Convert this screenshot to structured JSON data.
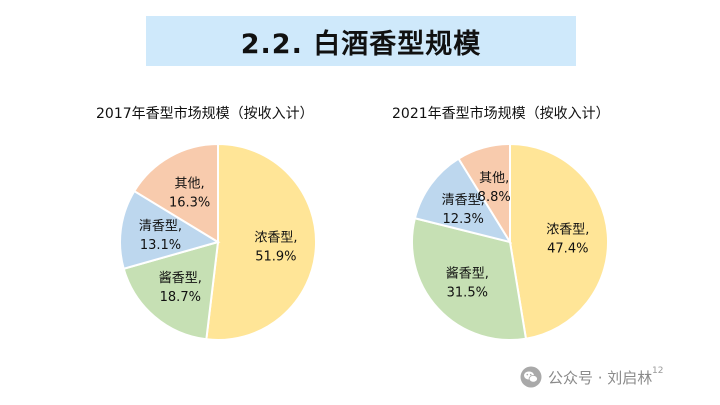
{
  "title": "2.2. 白酒香型规模",
  "chart_data": [
    {
      "type": "pie",
      "title": "2017年香型市场规模（按收入计）",
      "slices": [
        {
          "name": "浓香型",
          "value": 51.9,
          "label": "51.9%",
          "color": "#ffe597"
        },
        {
          "name": "酱香型",
          "value": 18.7,
          "label": "18.7%",
          "color": "#c6e0b4"
        },
        {
          "name": "清香型",
          "value": 13.1,
          "label": "13.1%",
          "color": "#bdd7ee"
        },
        {
          "name": "其他",
          "value": 16.3,
          "label": "16.3%",
          "color": "#f8cbad"
        }
      ]
    },
    {
      "type": "pie",
      "title": "2021年香型市场规模（按收入计）",
      "slices": [
        {
          "name": "浓香型",
          "value": 47.4,
          "label": "47.4%",
          "color": "#ffe597"
        },
        {
          "name": "酱香型",
          "value": 31.5,
          "label": "31.5%",
          "color": "#c6e0b4"
        },
        {
          "name": "清香型",
          "value": 12.3,
          "label": "12.3%",
          "color": "#bdd7ee"
        },
        {
          "name": "其他",
          "value": 8.8,
          "label": "8.8%",
          "color": "#f8cbad"
        }
      ]
    }
  ],
  "page_number": "12",
  "watermark": {
    "text": "公众号 · 刘启林",
    "icon": "wechat-icon"
  }
}
